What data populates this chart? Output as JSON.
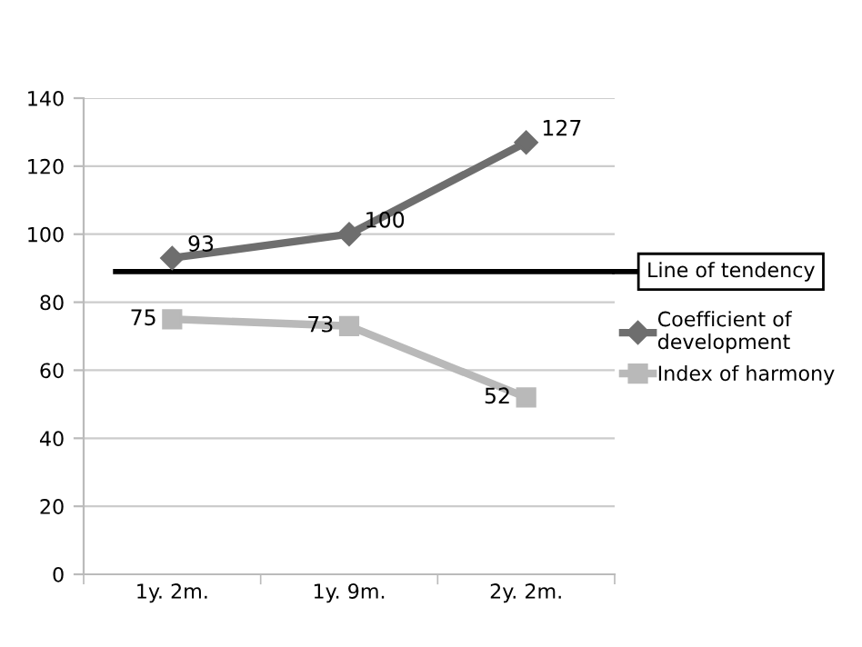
{
  "chart_data": {
    "type": "line",
    "categories": [
      "1y. 2m.",
      "1y. 9m.",
      "2y. 2m."
    ],
    "series": [
      {
        "name": "Coefficient of development",
        "color": "#6e6e6e",
        "marker": "diamond",
        "values": [
          93,
          100,
          127
        ]
      },
      {
        "name": "Index of harmony",
        "color": "#b9b9b9",
        "marker": "square",
        "values": [
          75,
          73,
          52
        ]
      }
    ],
    "ylim": [
      0,
      140
    ],
    "yticks": [
      0,
      20,
      40,
      60,
      80,
      100,
      120,
      140
    ],
    "ref_lines": [
      {
        "axis": "y",
        "value": 89,
        "label": "Line of tendency",
        "color": "#000000"
      }
    ],
    "data_labels": true,
    "grid": "y",
    "legend": "right"
  }
}
